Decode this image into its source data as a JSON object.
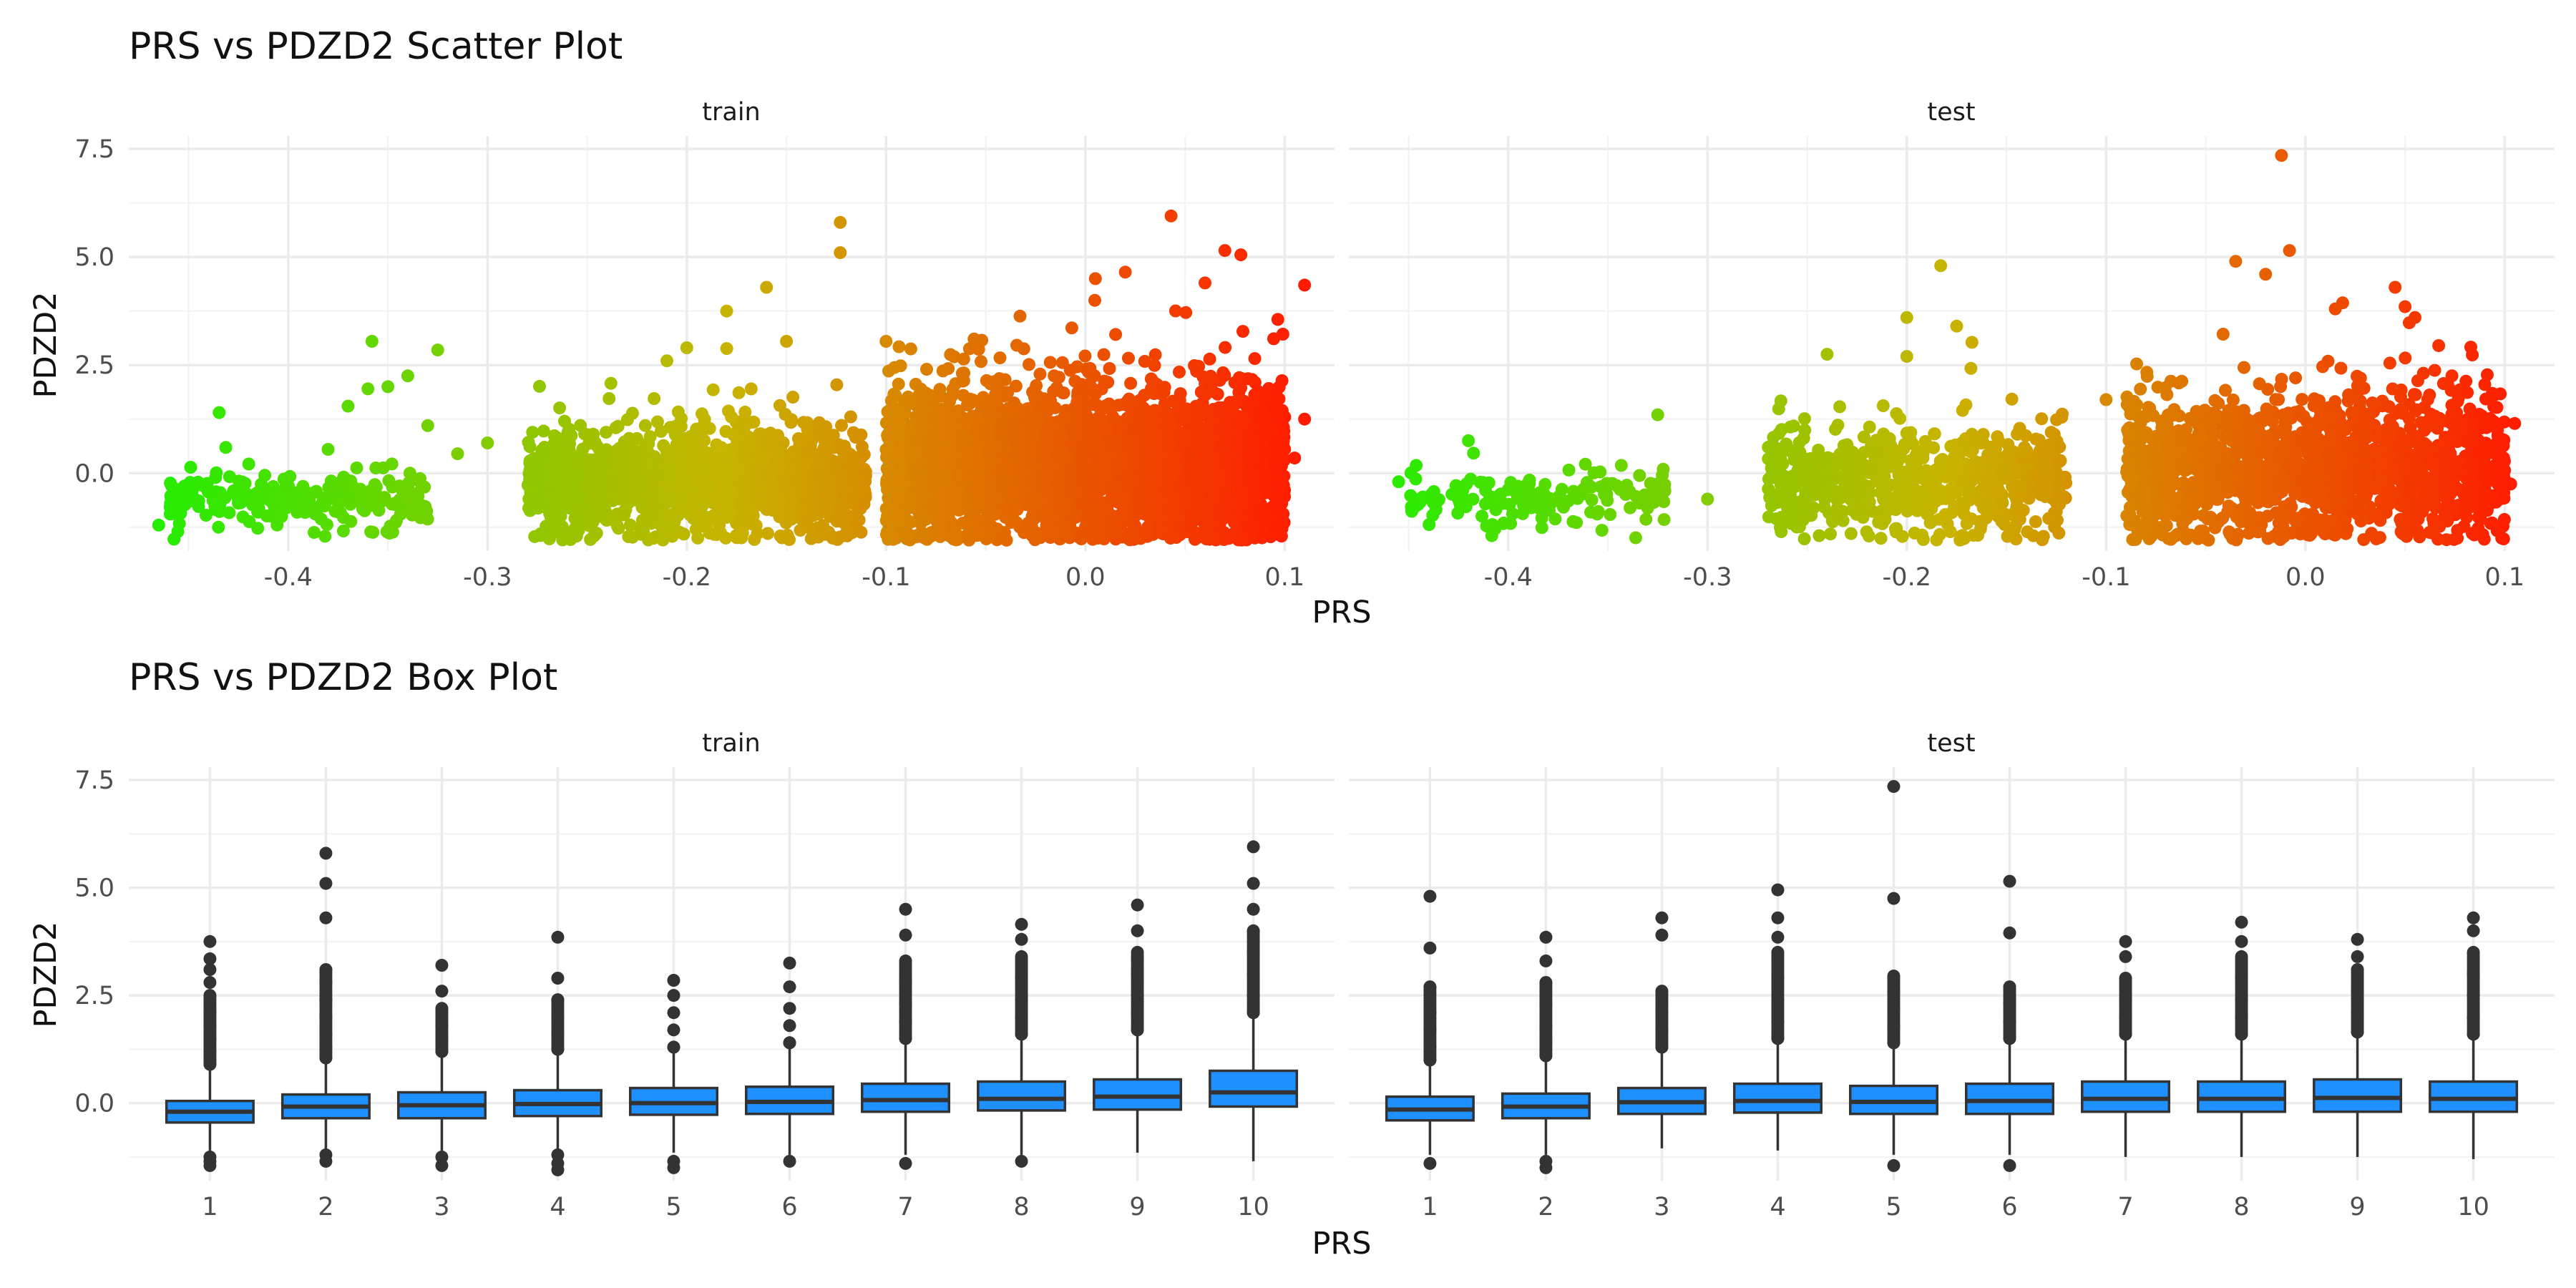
{
  "chart_data": [
    {
      "type": "scatter",
      "title": "PRS vs PDZD2 Scatter Plot",
      "xlabel": "PRS",
      "ylabel": "PDZD2",
      "facets": [
        "train",
        "test"
      ],
      "xlim": [
        -0.48,
        0.125
      ],
      "ylim": [
        -1.8,
        7.8
      ],
      "x_ticks": [
        -0.4,
        -0.3,
        -0.2,
        -0.1,
        0.0,
        0.1
      ],
      "x_tick_labels": [
        "-0.4",
        "-0.3",
        "-0.2",
        "-0.1",
        "0.0",
        "0.1"
      ],
      "y_ticks": [
        0.0,
        2.5,
        5.0,
        7.5
      ],
      "y_tick_labels": [
        "0.0",
        "2.5",
        "5.0",
        "7.5"
      ],
      "color_scale": {
        "low": "#22ee00",
        "mid": "#c8b400",
        "high": "#ff1a00",
        "low_value": -0.47,
        "high_value": 0.11
      },
      "clusters": {
        "train": [
          {
            "x_range": [
              -0.46,
              -0.33
            ],
            "y_center": -0.55,
            "y_sd": 0.28,
            "n": 260
          },
          {
            "x_range": [
              -0.28,
              -0.11
            ],
            "y_center": -0.15,
            "y_sd": 0.5,
            "n": 1400
          },
          {
            "x_range": [
              -0.1,
              0.1
            ],
            "y_center": 0.15,
            "y_sd": 0.75,
            "n": 3400
          }
        ],
        "test": [
          {
            "x_range": [
              -0.45,
              -0.32
            ],
            "y_center": -0.55,
            "y_sd": 0.28,
            "n": 150
          },
          {
            "x_range": [
              -0.27,
              -0.12
            ],
            "y_center": -0.15,
            "y_sd": 0.5,
            "n": 700
          },
          {
            "x_range": [
              -0.09,
              0.1
            ],
            "y_center": 0.15,
            "y_sd": 0.7,
            "n": 1500
          }
        ]
      },
      "outliers": {
        "train": [
          {
            "x": -0.465,
            "y": -1.2
          },
          {
            "x": -0.358,
            "y": 3.05
          },
          {
            "x": -0.325,
            "y": 2.85
          },
          {
            "x": -0.34,
            "y": 2.25
          },
          {
            "x": -0.36,
            "y": 1.95
          },
          {
            "x": -0.35,
            "y": 2.0
          },
          {
            "x": -0.33,
            "y": 1.1
          },
          {
            "x": -0.3,
            "y": 0.7
          },
          {
            "x": -0.315,
            "y": 0.45
          },
          {
            "x": -0.37,
            "y": 1.55
          },
          {
            "x": -0.38,
            "y": 0.55
          },
          {
            "x": -0.435,
            "y": -1.25
          },
          {
            "x": -0.18,
            "y": 3.75
          },
          {
            "x": -0.16,
            "y": 4.3
          },
          {
            "x": -0.123,
            "y": 5.8
          },
          {
            "x": -0.123,
            "y": 5.1
          },
          {
            "x": -0.15,
            "y": 3.05
          },
          {
            "x": -0.2,
            "y": 2.9
          },
          {
            "x": -0.1,
            "y": 3.05
          },
          {
            "x": -0.21,
            "y": 2.6
          },
          {
            "x": 0.043,
            "y": 5.95
          },
          {
            "x": 0.07,
            "y": 5.15
          },
          {
            "x": 0.078,
            "y": 5.05
          },
          {
            "x": 0.11,
            "y": 4.35
          },
          {
            "x": 0.005,
            "y": 4.5
          },
          {
            "x": 0.02,
            "y": 4.65
          },
          {
            "x": 0.06,
            "y": 4.4
          },
          {
            "x": 0.085,
            "y": 2.65
          },
          {
            "x": 0.1,
            "y": 1.3
          },
          {
            "x": 0.11,
            "y": 1.25
          },
          {
            "x": 0.095,
            "y": 0.7
          },
          {
            "x": 0.105,
            "y": 0.35
          }
        ],
        "test": [
          {
            "x": -0.455,
            "y": -0.2
          },
          {
            "x": -0.42,
            "y": 0.75
          },
          {
            "x": -0.325,
            "y": 1.35
          },
          {
            "x": -0.3,
            "y": -0.6
          },
          {
            "x": -0.183,
            "y": 4.8
          },
          {
            "x": -0.2,
            "y": 3.6
          },
          {
            "x": -0.175,
            "y": 3.4
          },
          {
            "x": -0.24,
            "y": 2.75
          },
          {
            "x": -0.2,
            "y": 2.7
          },
          {
            "x": -0.1,
            "y": 1.7
          },
          {
            "x": -0.012,
            "y": 7.35
          },
          {
            "x": -0.035,
            "y": 4.9
          },
          {
            "x": -0.008,
            "y": 5.15
          },
          {
            "x": -0.02,
            "y": 4.6
          },
          {
            "x": 0.045,
            "y": 4.3
          },
          {
            "x": 0.05,
            "y": 3.85
          },
          {
            "x": 0.055,
            "y": 3.6
          },
          {
            "x": 0.015,
            "y": 3.8
          },
          {
            "x": 0.09,
            "y": 2.05
          },
          {
            "x": 0.105,
            "y": 1.15
          },
          {
            "x": 0.103,
            "y": -0.25
          },
          {
            "x": 0.09,
            "y": -0.5
          }
        ]
      }
    },
    {
      "type": "box",
      "title": "PRS vs PDZD2 Box Plot",
      "xlabel": "PRS",
      "ylabel": "PDZD2",
      "facets": [
        "train",
        "test"
      ],
      "categories": [
        "1",
        "2",
        "3",
        "4",
        "5",
        "6",
        "7",
        "8",
        "9",
        "10"
      ],
      "ylim": [
        -1.8,
        7.8
      ],
      "y_ticks": [
        0.0,
        2.5,
        5.0,
        7.5
      ],
      "y_tick_labels": [
        "0.0",
        "2.5",
        "5.0",
        "7.5"
      ],
      "box_color": "#1e90ff",
      "train": [
        {
          "q1": -0.45,
          "median": -0.2,
          "q3": 0.05,
          "lo": -1.1,
          "hi": 0.8,
          "outliers_hi": [
            0.9,
            1.0,
            1.2,
            1.5,
            1.8,
            2.1,
            2.5,
            2.8,
            3.1,
            3.35,
            3.75
          ],
          "outliers_lo": [
            -1.25,
            -1.35,
            -1.45
          ]
        },
        {
          "q1": -0.35,
          "median": -0.08,
          "q3": 0.2,
          "lo": -1.1,
          "hi": 0.95,
          "outliers_hi": [
            1.05,
            1.3,
            1.6,
            2.0,
            2.4,
            2.8,
            3.1,
            4.3,
            5.1,
            5.8
          ],
          "outliers_lo": [
            -1.2,
            -1.35
          ]
        },
        {
          "q1": -0.35,
          "median": -0.05,
          "q3": 0.25,
          "lo": -1.1,
          "hi": 1.1,
          "outliers_hi": [
            1.2,
            1.5,
            1.8,
            2.2,
            2.6,
            3.2
          ],
          "outliers_lo": [
            -1.25,
            -1.45
          ]
        },
        {
          "q1": -0.3,
          "median": -0.02,
          "q3": 0.3,
          "lo": -1.1,
          "hi": 1.15,
          "outliers_hi": [
            1.25,
            1.6,
            2.0,
            2.4,
            2.9,
            3.85
          ],
          "outliers_lo": [
            -1.2,
            -1.4,
            -1.55
          ]
        },
        {
          "q1": -0.27,
          "median": 0.0,
          "q3": 0.35,
          "lo": -1.15,
          "hi": 1.2,
          "outliers_hi": [
            1.3,
            1.7,
            2.1,
            2.5,
            2.85
          ],
          "outliers_lo": [
            -1.35,
            -1.5
          ]
        },
        {
          "q1": -0.25,
          "median": 0.03,
          "q3": 0.38,
          "lo": -1.2,
          "hi": 1.3,
          "outliers_hi": [
            1.4,
            1.8,
            2.2,
            2.7,
            3.25
          ],
          "outliers_lo": [
            -1.35
          ]
        },
        {
          "q1": -0.2,
          "median": 0.07,
          "q3": 0.45,
          "lo": -1.2,
          "hi": 1.4,
          "outliers_hi": [
            1.5,
            1.9,
            2.3,
            2.8,
            3.3,
            3.9,
            4.5
          ],
          "outliers_lo": [
            -1.4
          ]
        },
        {
          "q1": -0.17,
          "median": 0.1,
          "q3": 0.5,
          "lo": -1.2,
          "hi": 1.5,
          "outliers_hi": [
            1.6,
            2.0,
            2.4,
            2.9,
            3.4,
            3.8,
            4.15
          ],
          "outliers_lo": [
            -1.35
          ]
        },
        {
          "q1": -0.15,
          "median": 0.15,
          "q3": 0.55,
          "lo": -1.15,
          "hi": 1.6,
          "outliers_hi": [
            1.7,
            2.1,
            2.5,
            3.0,
            3.5,
            4.0,
            4.6
          ],
          "outliers_lo": []
        },
        {
          "q1": -0.08,
          "median": 0.25,
          "q3": 0.75,
          "lo": -1.35,
          "hi": 2.0,
          "outliers_hi": [
            2.1,
            2.5,
            3.0,
            3.5,
            4.0,
            4.5,
            5.1,
            5.95
          ],
          "outliers_lo": []
        }
      ],
      "test": [
        {
          "q1": -0.4,
          "median": -0.15,
          "q3": 0.15,
          "lo": -1.2,
          "hi": 0.9,
          "outliers_hi": [
            1.0,
            1.3,
            1.7,
            2.1,
            2.7,
            3.6,
            4.8
          ],
          "outliers_lo": [
            -1.4
          ]
        },
        {
          "q1": -0.35,
          "median": -0.08,
          "q3": 0.22,
          "lo": -1.2,
          "hi": 1.0,
          "outliers_hi": [
            1.1,
            1.4,
            1.8,
            2.3,
            2.8,
            3.3,
            3.85
          ],
          "outliers_lo": [
            -1.35,
            -1.5
          ]
        },
        {
          "q1": -0.25,
          "median": 0.02,
          "q3": 0.35,
          "lo": -1.05,
          "hi": 1.2,
          "outliers_hi": [
            1.3,
            1.7,
            2.1,
            2.6,
            3.9,
            4.3
          ],
          "outliers_lo": []
        },
        {
          "q1": -0.22,
          "median": 0.05,
          "q3": 0.45,
          "lo": -1.1,
          "hi": 1.4,
          "outliers_hi": [
            1.5,
            1.9,
            2.4,
            2.9,
            3.5,
            3.85,
            4.3,
            4.95
          ],
          "outliers_lo": []
        },
        {
          "q1": -0.25,
          "median": 0.03,
          "q3": 0.4,
          "lo": -1.2,
          "hi": 1.3,
          "outliers_hi": [
            1.4,
            1.8,
            2.2,
            2.6,
            2.95,
            4.75,
            7.35
          ],
          "outliers_lo": [
            -1.45
          ]
        },
        {
          "q1": -0.25,
          "median": 0.05,
          "q3": 0.45,
          "lo": -1.2,
          "hi": 1.4,
          "outliers_hi": [
            1.5,
            1.9,
            2.3,
            2.7,
            3.95,
            5.15
          ],
          "outliers_lo": [
            -1.45
          ]
        },
        {
          "q1": -0.2,
          "median": 0.1,
          "q3": 0.5,
          "lo": -1.25,
          "hi": 1.5,
          "outliers_hi": [
            1.6,
            2.0,
            2.4,
            2.9,
            3.4,
            3.75
          ],
          "outliers_lo": []
        },
        {
          "q1": -0.2,
          "median": 0.1,
          "q3": 0.5,
          "lo": -1.25,
          "hi": 1.5,
          "outliers_hi": [
            1.6,
            2.0,
            2.4,
            2.9,
            3.4,
            3.75,
            4.2
          ],
          "outliers_lo": []
        },
        {
          "q1": -0.2,
          "median": 0.12,
          "q3": 0.55,
          "lo": -1.25,
          "hi": 1.55,
          "outliers_hi": [
            1.65,
            2.1,
            2.6,
            3.1,
            3.4,
            3.8
          ],
          "outliers_lo": []
        },
        {
          "q1": -0.2,
          "median": 0.1,
          "q3": 0.5,
          "lo": -1.3,
          "hi": 1.5,
          "outliers_hi": [
            1.6,
            2.0,
            2.5,
            3.0,
            3.5,
            4.0,
            4.3
          ],
          "outliers_lo": []
        }
      ]
    }
  ]
}
